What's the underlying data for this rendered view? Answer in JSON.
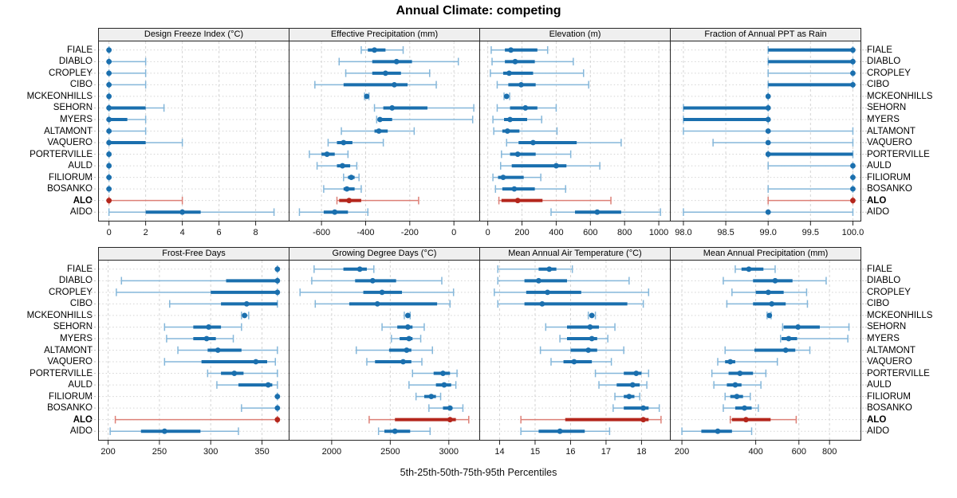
{
  "title": "Annual Climate: competing",
  "xlabel": "5th-25th-50th-75th-95th Percentiles",
  "percentile_labels": [
    "5th",
    "25th",
    "50th",
    "75th",
    "95th"
  ],
  "sites": [
    "FIALE",
    "DIABLO",
    "CROPLEY",
    "CIBO",
    "MCKEONHILLS",
    "SEHORN",
    "MYERS",
    "ALTAMONT",
    "VAQUERO",
    "PORTERVILLE",
    "AULD",
    "FILIORUM",
    "BOSANKO",
    "ALO",
    "AIDO"
  ],
  "highlight_site": "ALO",
  "colors": {
    "series_blue_dark": "#1a6fae",
    "series_blue_light": "#85b7da",
    "highlight_red_dark": "#b4261c",
    "highlight_red_light": "#dd8077",
    "grid": "#d4d4d4",
    "strip_bg": "#efefef",
    "panel_border": "#262626",
    "tick_text": "#111111"
  },
  "chart_data": [
    {
      "type": "percentile-dotplot",
      "title": "Design Freeze Index (°C)",
      "scale": "linear",
      "domain": [
        -0.55,
        9.8
      ],
      "ticks": [
        0,
        2,
        4,
        6,
        8
      ],
      "tick_labels": [
        "0",
        "2",
        "4",
        "6",
        "8"
      ],
      "percentiles": [
        [
          0,
          0,
          0,
          0,
          0
        ],
        [
          0,
          0,
          0,
          0,
          2
        ],
        [
          0,
          0,
          0,
          0,
          2
        ],
        [
          0,
          0,
          0,
          0,
          2
        ],
        [
          0,
          0,
          0,
          0,
          0
        ],
        [
          0,
          0,
          0,
          2,
          3
        ],
        [
          0,
          0,
          0,
          1,
          2
        ],
        [
          0,
          0,
          0,
          0,
          2
        ],
        [
          0,
          0,
          0,
          2,
          4
        ],
        [
          0,
          0,
          0,
          0,
          0
        ],
        [
          0,
          0,
          0,
          0,
          0
        ],
        [
          0,
          0,
          0,
          0,
          0
        ],
        [
          0,
          0,
          0,
          0,
          0
        ],
        [
          0,
          0,
          0,
          0,
          4
        ],
        [
          0,
          2,
          4,
          5,
          9
        ]
      ]
    },
    {
      "type": "percentile-dotplot",
      "title": "Effective Precipitation (mm)",
      "scale": "linear",
      "domain": [
        -745,
        115
      ],
      "ticks": [
        -600,
        -400,
        -200,
        0
      ],
      "tick_labels": [
        "-600",
        "-400",
        "-200",
        "0"
      ],
      "percentiles": [
        [
          -420,
          -390,
          -360,
          -310,
          -230
        ],
        [
          -520,
          -370,
          -260,
          -190,
          20
        ],
        [
          -490,
          -370,
          -310,
          -240,
          -110
        ],
        [
          -630,
          -500,
          -270,
          -210,
          -80
        ],
        [
          -405,
          -400,
          -395,
          -390,
          -385
        ],
        [
          -360,
          -320,
          -280,
          -120,
          90
        ],
        [
          -350,
          -345,
          -335,
          -280,
          85
        ],
        [
          -510,
          -360,
          -340,
          -300,
          -180
        ],
        [
          -570,
          -530,
          -500,
          -460,
          -320
        ],
        [
          -655,
          -600,
          -575,
          -540,
          -480
        ],
        [
          -620,
          -530,
          -505,
          -470,
          -440
        ],
        [
          -500,
          -480,
          -465,
          -450,
          -430
        ],
        [
          -590,
          -500,
          -485,
          -450,
          -420
        ],
        [
          -530,
          -520,
          -475,
          -420,
          -160
        ],
        [
          -700,
          -590,
          -540,
          -480,
          -390
        ]
      ]
    },
    {
      "type": "percentile-dotplot",
      "title": "Elevation (m)",
      "scale": "linear",
      "domain": [
        -45,
        1065
      ],
      "ticks": [
        0,
        200,
        400,
        600,
        800,
        1000
      ],
      "tick_labels": [
        "0",
        "200",
        "400",
        "600",
        "800",
        "1000"
      ],
      "percentiles": [
        [
          20,
          100,
          135,
          290,
          350
        ],
        [
          25,
          100,
          160,
          275,
          500
        ],
        [
          15,
          90,
          125,
          265,
          560
        ],
        [
          55,
          120,
          195,
          280,
          590
        ],
        [
          95,
          105,
          110,
          118,
          128
        ],
        [
          55,
          130,
          220,
          290,
          400
        ],
        [
          30,
          95,
          130,
          230,
          315
        ],
        [
          35,
          85,
          115,
          185,
          405
        ],
        [
          110,
          180,
          265,
          520,
          780
        ],
        [
          80,
          130,
          175,
          280,
          485
        ],
        [
          75,
          140,
          400,
          460,
          655
        ],
        [
          30,
          60,
          90,
          210,
          310
        ],
        [
          45,
          85,
          155,
          275,
          455
        ],
        [
          65,
          80,
          175,
          320,
          720
        ],
        [
          370,
          510,
          640,
          780,
          1010
        ]
      ]
    },
    {
      "type": "percentile-dotplot",
      "title": "Fraction of Annual PPT as Rain",
      "scale": "linear",
      "domain": [
        97.85,
        100.09
      ],
      "ticks": [
        98.0,
        98.5,
        99.0,
        99.5,
        100.0
      ],
      "tick_labels": [
        "98.0",
        "98.5",
        "99.0",
        "99.5",
        "100.0"
      ],
      "percentiles": [
        [
          99,
          99,
          100,
          100,
          100
        ],
        [
          99,
          99,
          100,
          100,
          100
        ],
        [
          99,
          100,
          100,
          100,
          100
        ],
        [
          99,
          99,
          100,
          100,
          100
        ],
        [
          99,
          99,
          99,
          99,
          99
        ],
        [
          98,
          98,
          99,
          99,
          99
        ],
        [
          98,
          98,
          99,
          99,
          99
        ],
        [
          98,
          99,
          99,
          99,
          100
        ],
        [
          98.35,
          99,
          99,
          99,
          100
        ],
        [
          99,
          99,
          99,
          100,
          100
        ],
        [
          99,
          100,
          100,
          100,
          100
        ],
        [
          100,
          100,
          100,
          100,
          100
        ],
        [
          99,
          100,
          100,
          100,
          100
        ],
        [
          99,
          100,
          100,
          100,
          100
        ],
        [
          98,
          99,
          99,
          99,
          100
        ]
      ]
    },
    {
      "type": "percentile-dotplot",
      "title": "Frost-Free Days",
      "scale": "linear",
      "domain": [
        191,
        376
      ],
      "ticks": [
        200,
        250,
        300,
        350
      ],
      "tick_labels": [
        "200",
        "250",
        "300",
        "350"
      ],
      "percentiles": [
        [
          365,
          365,
          365,
          365,
          365
        ],
        [
          213,
          315,
          365,
          365,
          365
        ],
        [
          208,
          300,
          365,
          365,
          365
        ],
        [
          260,
          310,
          335,
          365,
          365
        ],
        [
          330,
          332,
          333,
          335,
          337
        ],
        [
          255,
          283,
          298,
          310,
          330
        ],
        [
          257,
          283,
          296,
          305,
          322
        ],
        [
          268,
          297,
          307,
          330,
          365
        ],
        [
          255,
          291,
          344,
          355,
          363
        ],
        [
          297,
          310,
          323,
          332,
          365
        ],
        [
          306,
          327,
          356,
          360,
          365
        ],
        [
          365,
          365,
          365,
          365,
          365
        ],
        [
          330,
          365,
          365,
          365,
          365
        ],
        [
          207,
          365,
          365,
          365,
          365
        ],
        [
          202,
          232,
          255,
          290,
          327
        ]
      ]
    },
    {
      "type": "percentile-dotplot",
      "title": "Growing Degree Days (°C)",
      "scale": "linear",
      "domain": [
        1640,
        3260
      ],
      "ticks": [
        2000,
        2500,
        3000
      ],
      "tick_labels": [
        "2000",
        "2500",
        "3000"
      ],
      "percentiles": [
        [
          1850,
          2100,
          2240,
          2300,
          2360
        ],
        [
          1830,
          2200,
          2350,
          2550,
          2940
        ],
        [
          1730,
          2270,
          2430,
          2600,
          3040
        ],
        [
          1860,
          2150,
          2390,
          2900,
          3010
        ],
        [
          2620,
          2640,
          2650,
          2660,
          2670
        ],
        [
          2430,
          2560,
          2650,
          2690,
          2790
        ],
        [
          2510,
          2580,
          2660,
          2690,
          2760
        ],
        [
          2210,
          2490,
          2640,
          2680,
          2860
        ],
        [
          2300,
          2370,
          2610,
          2680,
          2770
        ],
        [
          2690,
          2870,
          2950,
          3010,
          3070
        ],
        [
          2660,
          2890,
          2960,
          3020,
          3060
        ],
        [
          2720,
          2790,
          2850,
          2890,
          2930
        ],
        [
          2830,
          2950,
          3010,
          3030,
          3120
        ],
        [
          2320,
          2540,
          3010,
          3060,
          3170
        ],
        [
          2400,
          2450,
          2540,
          2670,
          2840
        ]
      ]
    },
    {
      "type": "percentile-dotplot",
      "title": "Mean Annual Air Temperature (°C)",
      "scale": "linear",
      "domain": [
        13.45,
        18.8
      ],
      "ticks": [
        14,
        15,
        16,
        17,
        18
      ],
      "tick_labels": [
        "14",
        "15",
        "16",
        "17",
        "18"
      ],
      "percentiles": [
        [
          13.95,
          15.1,
          15.4,
          15.6,
          16.05
        ],
        [
          13.95,
          14.7,
          15.1,
          15.9,
          17.65
        ],
        [
          13.85,
          14.75,
          15.35,
          16.3,
          18.2
        ],
        [
          13.95,
          14.7,
          15.2,
          17.6,
          18.05
        ],
        [
          16.5,
          16.55,
          16.6,
          16.65,
          16.7
        ],
        [
          15.3,
          15.9,
          16.55,
          16.8,
          17.25
        ],
        [
          15.7,
          15.9,
          16.6,
          16.75,
          17.05
        ],
        [
          15.15,
          16.0,
          16.5,
          16.75,
          17.5
        ],
        [
          15.45,
          15.8,
          16.1,
          16.6,
          17.15
        ],
        [
          16.7,
          17.5,
          17.85,
          18.0,
          18.2
        ],
        [
          16.8,
          17.3,
          17.75,
          17.95,
          18.15
        ],
        [
          17.25,
          17.5,
          17.65,
          17.8,
          17.95
        ],
        [
          17.2,
          17.5,
          18.05,
          18.2,
          18.5
        ],
        [
          14.6,
          15.85,
          18.05,
          18.2,
          18.55
        ],
        [
          14.6,
          15.1,
          15.7,
          16.4,
          17.1
        ]
      ]
    },
    {
      "type": "percentile-dotplot",
      "title": "Mean Annual Precipitation (mm)",
      "scale": "log",
      "domain": [
        180,
        1070
      ],
      "ticks": [
        200,
        400,
        600,
        800
      ],
      "tick_labels": [
        "200",
        "400",
        "600",
        "800"
      ],
      "percentiles": [
        [
          330,
          350,
          375,
          430,
          480
        ],
        [
          295,
          390,
          480,
          565,
          775
        ],
        [
          320,
          400,
          450,
          520,
          645
        ],
        [
          305,
          390,
          465,
          530,
          650
        ],
        [
          445,
          450,
          455,
          458,
          462
        ],
        [
          515,
          520,
          595,
          730,
          960
        ],
        [
          505,
          510,
          545,
          590,
          950
        ],
        [
          300,
          395,
          530,
          580,
          665
        ],
        [
          280,
          300,
          315,
          330,
          490
        ],
        [
          265,
          310,
          345,
          390,
          440
        ],
        [
          270,
          305,
          330,
          350,
          420
        ],
        [
          300,
          315,
          335,
          355,
          380
        ],
        [
          295,
          330,
          360,
          385,
          410
        ],
        [
          315,
          320,
          365,
          460,
          585
        ],
        [
          200,
          240,
          280,
          320,
          385
        ]
      ]
    }
  ]
}
